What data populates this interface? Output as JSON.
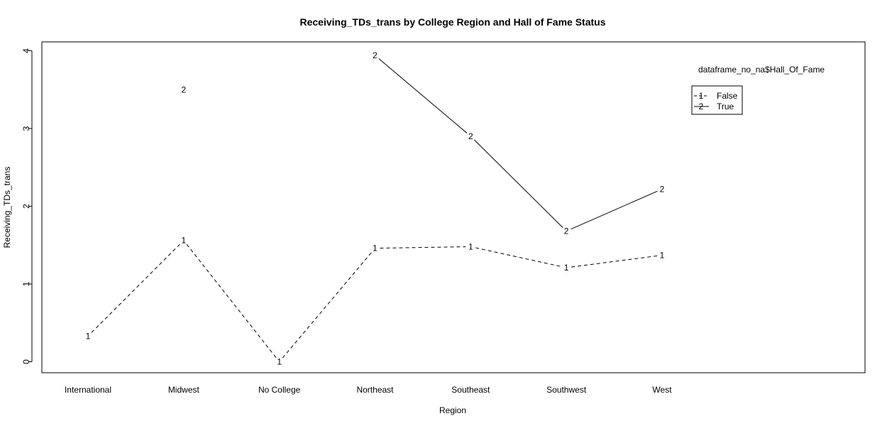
{
  "chart_data": {
    "type": "line",
    "title": "Receiving_TDs_trans by College Region and Hall of Fame Status",
    "xlabel": "Region",
    "ylabel": "Receiving_TDs_trans",
    "categories": [
      "International",
      "Midwest",
      "No College",
      "Northeast",
      "Southeast",
      "Southwest",
      "West"
    ],
    "ylim": [
      -0.15,
      4.1
    ],
    "yticks": [
      "0",
      "1",
      "2",
      "3",
      "4"
    ],
    "legend_title": "dataframe_no_na$Hall_Of_Fame",
    "legend_position": "top-right",
    "series": [
      {
        "name": "False",
        "symbol": "1",
        "line": "dashed",
        "values": [
          0.33,
          1.56,
          0.0,
          1.46,
          1.48,
          1.21,
          1.37
        ]
      },
      {
        "name": "True",
        "symbol": "2",
        "line": "solid",
        "values": [
          null,
          3.5,
          null,
          3.94,
          2.9,
          1.68,
          2.22
        ]
      }
    ]
  }
}
